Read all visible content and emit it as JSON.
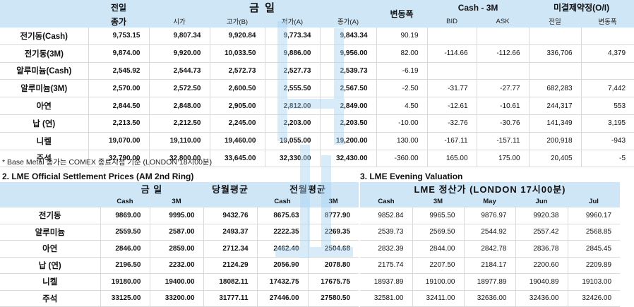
{
  "top_table": {
    "headers": {
      "prev_close_line1": "전일",
      "prev_close_line2": "종가",
      "today_group": "금  일",
      "change": "변동폭",
      "cash3m_group": "Cash - 3M",
      "oi_group": "미결제약정(O/I)",
      "sub_open": "시가",
      "sub_high": "고가(B)",
      "sub_low": "저가(A)",
      "sub_close": "종가(A)",
      "sub_bid": "BID",
      "sub_ask": "ASK",
      "sub_oi_prev": "전일",
      "sub_oi_change": "변동폭"
    },
    "rows": [
      {
        "name": "전기동(Cash)",
        "prev": "9,753.15",
        "open": "9,807.34",
        "high": "9,920.84",
        "low": "9,773.34",
        "close": "9,843.34",
        "change": "90.19",
        "bid": "",
        "ask": "",
        "oi_prev": "",
        "oi_change": ""
      },
      {
        "name": "전기동(3M)",
        "prev": "9,874.00",
        "open": "9,920.00",
        "high": "10,033.50",
        "low": "9,886.00",
        "close": "9,956.00",
        "change": "82.00",
        "bid": "-114.66",
        "ask": "-112.66",
        "oi_prev": "336,706",
        "oi_change": "4,379"
      },
      {
        "name": "알루미늄(Cash)",
        "prev": "2,545.92",
        "open": "2,544.73",
        "high": "2,572.73",
        "low": "2,527.73",
        "close": "2,539.73",
        "change": "-6.19",
        "bid": "",
        "ask": "",
        "oi_prev": "",
        "oi_change": ""
      },
      {
        "name": "알루미늄(3M)",
        "prev": "2,570.00",
        "open": "2,572.50",
        "high": "2,600.50",
        "low": "2,555.50",
        "close": "2,567.50",
        "change": "-2.50",
        "bid": "-31.77",
        "ask": "-27.77",
        "oi_prev": "682,283",
        "oi_change": "7,442"
      },
      {
        "name": "아연",
        "prev": "2,844.50",
        "open": "2,848.00",
        "high": "2,905.00",
        "low": "2,812.00",
        "close": "2,849.00",
        "change": "4.50",
        "bid": "-12.61",
        "ask": "-10.61",
        "oi_prev": "244,317",
        "oi_change": "553"
      },
      {
        "name": "납 (연)",
        "prev": "2,213.50",
        "open": "2,212.50",
        "high": "2,245.00",
        "low": "2,203.00",
        "close": "2,203.50",
        "change": "-10.00",
        "bid": "-32.76",
        "ask": "-30.76",
        "oi_prev": "141,349",
        "oi_change": "3,195"
      },
      {
        "name": "니켈",
        "prev": "19,070.00",
        "open": "19,110.00",
        "high": "19,460.00",
        "low": "19,055.00",
        "close": "19,200.00",
        "change": "130.00",
        "bid": "-167.11",
        "ask": "-157.11",
        "oi_prev": "200,918",
        "oi_change": "-943"
      },
      {
        "name": "주석",
        "prev": "32,790.00",
        "open": "32,800.00",
        "high": "33,645.00",
        "low": "32,330.00",
        "close": "32,430.00",
        "change": "-360.00",
        "bid": "165.00",
        "ask": "175.00",
        "oi_prev": "20,405",
        "oi_change": "-5"
      }
    ]
  },
  "note": "* Base Metal 종가는 COMEX 종료시점 기준 (LONDON 18시00분)",
  "lme_settlement": {
    "title": "2. LME Official Settlement Prices (AM 2nd Ring)",
    "headers": {
      "today": "금  일",
      "month_avg": "당월평균",
      "prev_month_avg": "전월평균",
      "cash": "Cash",
      "m3": "3M"
    },
    "rows": [
      {
        "name": "전기동",
        "cash": "9869.00",
        "m3": "9995.00",
        "month_avg": "9432.76",
        "prev_cash": "8675.63",
        "prev_3m": "8777.90"
      },
      {
        "name": "알루미늄",
        "cash": "2559.50",
        "m3": "2587.00",
        "month_avg": "2493.37",
        "prev_cash": "2222.35",
        "prev_3m": "2269.35"
      },
      {
        "name": "아연",
        "cash": "2846.00",
        "m3": "2859.00",
        "month_avg": "2712.34",
        "prev_cash": "2462.40",
        "prev_3m": "2504.68"
      },
      {
        "name": "납 (연)",
        "cash": "2196.50",
        "m3": "2232.00",
        "month_avg": "2124.29",
        "prev_cash": "2056.90",
        "prev_3m": "2078.80"
      },
      {
        "name": "니켈",
        "cash": "19180.00",
        "m3": "19400.00",
        "month_avg": "18082.11",
        "prev_cash": "17432.75",
        "prev_3m": "17675.75"
      },
      {
        "name": "주석",
        "cash": "33125.00",
        "m3": "33200.00",
        "month_avg": "31777.11",
        "prev_cash": "27446.00",
        "prev_3m": "27580.50"
      }
    ]
  },
  "evening_valuation": {
    "title": "3. LME Evening Valuation",
    "header": "LME 정산가 (LONDON 17시00분)",
    "columns": [
      "Cash",
      "3M",
      "May",
      "Jun",
      "Jul"
    ],
    "rows": [
      [
        "9852.84",
        "9965.50",
        "9876.97",
        "9920.38",
        "9960.17"
      ],
      [
        "2539.73",
        "2569.50",
        "2544.92",
        "2557.42",
        "2568.85"
      ],
      [
        "2832.39",
        "2844.00",
        "2842.78",
        "2836.78",
        "2845.45"
      ],
      [
        "2175.74",
        "2207.50",
        "2184.17",
        "2200.60",
        "2209.89"
      ],
      [
        "18937.89",
        "19100.00",
        "18977.89",
        "19040.89",
        "19103.00"
      ],
      [
        "32581.00",
        "32411.00",
        "32636.00",
        "32436.00",
        "32426.00"
      ]
    ]
  },
  "colors": {
    "header_bg": "#cfe6f7",
    "watermark": "#a9d3f2"
  }
}
